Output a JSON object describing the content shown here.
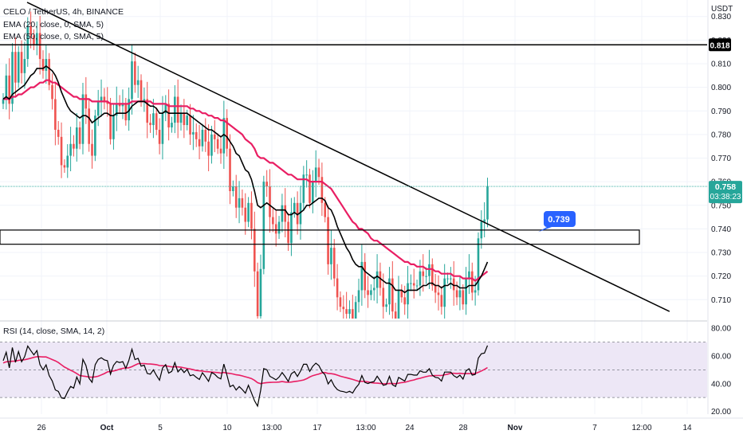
{
  "header": {
    "symbol_line": "CELO / TetherUS, 4h, BINANCE",
    "ema20_label": "EMA (20, close, 0, SMA, 5)",
    "ema50_label": "EMA (50, close, 0, SMA, 5)",
    "rsi_label": "RSI (14, close, SMA, 14, 2)"
  },
  "price_axis": {
    "currency": "USDT",
    "ticks": [
      "0.830",
      "0.820",
      "0.810",
      "0.800",
      "0.790",
      "0.780",
      "0.770",
      "0.760",
      "0.750",
      "0.740",
      "0.730",
      "0.720",
      "0.710"
    ],
    "ticks_values": [
      0.83,
      0.82,
      0.81,
      0.8,
      0.79,
      0.78,
      0.77,
      0.76,
      0.75,
      0.74,
      0.73,
      0.72,
      0.71
    ],
    "current_price": "0.758",
    "countdown": "03:38:23",
    "resistance_label": "0.818"
  },
  "rsi_axis": {
    "ticks": [
      "80.00",
      "60.00",
      "40.00",
      "20.00"
    ],
    "ticks_values": [
      80,
      60,
      40,
      20
    ]
  },
  "time_axis": {
    "labels": [
      "26",
      "Oct",
      "5",
      "10",
      "13:00",
      "17",
      "13:00",
      "24",
      "28",
      "Nov",
      "7",
      "12:00",
      "14"
    ]
  },
  "annotation": {
    "callout": "0.739"
  },
  "colors": {
    "up": "#26a69a",
    "down": "#ef5350",
    "ema20": "#000000",
    "ema50": "#e91e63",
    "rsi": "#000000",
    "rsi_ma": "#e91e63",
    "rsi_band": "#ede7f6",
    "badge": "#2962ff"
  },
  "chart_data": {
    "type": "candlestick",
    "interval": "4h",
    "price_range": [
      0.702,
      0.837
    ],
    "rsi_range": [
      18,
      83
    ],
    "rsi_levels": [
      70,
      50,
      30
    ],
    "horizontal_levels": [
      0.818
    ],
    "zone": [
      0.7335,
      0.7395
    ],
    "trendline": {
      "from": [
        0,
        0.836
      ],
      "to": [
        169,
        0.705
      ]
    },
    "callout_price": 0.739,
    "last_price": 0.758,
    "closes": [
      0.795,
      0.805,
      0.793,
      0.815,
      0.802,
      0.815,
      0.806,
      0.812,
      0.826,
      0.822,
      0.818,
      0.823,
      0.812,
      0.807,
      0.812,
      0.801,
      0.795,
      0.782,
      0.779,
      0.767,
      0.766,
      0.771,
      0.776,
      0.774,
      0.783,
      0.776,
      0.797,
      0.791,
      0.776,
      0.771,
      0.788,
      0.794,
      0.796,
      0.794,
      0.793,
      0.778,
      0.788,
      0.793,
      0.792,
      0.793,
      0.786,
      0.795,
      0.811,
      0.801,
      0.803,
      0.794,
      0.795,
      0.785,
      0.784,
      0.789,
      0.782,
      0.776,
      0.789,
      0.793,
      0.783,
      0.785,
      0.796,
      0.785,
      0.789,
      0.784,
      0.788,
      0.78,
      0.781,
      0.778,
      0.775,
      0.782,
      0.777,
      0.771,
      0.78,
      0.778,
      0.774,
      0.772,
      0.787,
      0.774,
      0.756,
      0.758,
      0.749,
      0.753,
      0.749,
      0.743,
      0.751,
      0.74,
      0.722,
      0.703,
      0.723,
      0.76,
      0.758,
      0.745,
      0.742,
      0.738,
      0.743,
      0.75,
      0.743,
      0.734,
      0.747,
      0.751,
      0.742,
      0.751,
      0.763,
      0.763,
      0.751,
      0.76,
      0.766,
      0.762,
      0.751,
      0.745,
      0.725,
      0.732,
      0.719,
      0.711,
      0.707,
      0.706,
      0.704,
      0.706,
      0.702,
      0.709,
      0.714,
      0.726,
      0.714,
      0.712,
      0.714,
      0.715,
      0.722,
      0.715,
      0.707,
      0.708,
      0.719,
      0.705,
      0.702,
      0.714,
      0.711,
      0.708,
      0.717,
      0.717,
      0.716,
      0.716,
      0.722,
      0.72,
      0.72,
      0.725,
      0.716,
      0.713,
      0.712,
      0.707,
      0.719,
      0.719,
      0.719,
      0.714,
      0.711,
      0.714,
      0.708,
      0.719,
      0.722,
      0.713,
      0.714,
      0.736,
      0.743,
      0.744,
      0.758
    ],
    "ema20": [
      0.795,
      0.796,
      0.795,
      0.797,
      0.798,
      0.799,
      0.8,
      0.801,
      0.803,
      0.805,
      0.806,
      0.808,
      0.808,
      0.808,
      0.809,
      0.808,
      0.807,
      0.805,
      0.802,
      0.798,
      0.795,
      0.792,
      0.79,
      0.789,
      0.788,
      0.787,
      0.788,
      0.788,
      0.787,
      0.785,
      0.786,
      0.787,
      0.788,
      0.789,
      0.789,
      0.788,
      0.788,
      0.789,
      0.789,
      0.789,
      0.789,
      0.79,
      0.792,
      0.793,
      0.794,
      0.794,
      0.794,
      0.793,
      0.792,
      0.792,
      0.791,
      0.789,
      0.789,
      0.79,
      0.789,
      0.789,
      0.789,
      0.789,
      0.789,
      0.789,
      0.789,
      0.788,
      0.787,
      0.786,
      0.785,
      0.784,
      0.783,
      0.782,
      0.782,
      0.781,
      0.78,
      0.779,
      0.78,
      0.779,
      0.777,
      0.775,
      0.772,
      0.771,
      0.768,
      0.765,
      0.764,
      0.761,
      0.756,
      0.75,
      0.749,
      0.75,
      0.751,
      0.75,
      0.749,
      0.748,
      0.748,
      0.748,
      0.748,
      0.746,
      0.746,
      0.747,
      0.746,
      0.747,
      0.748,
      0.75,
      0.75,
      0.751,
      0.752,
      0.753,
      0.753,
      0.752,
      0.749,
      0.748,
      0.745,
      0.741,
      0.738,
      0.735,
      0.732,
      0.73,
      0.727,
      0.725,
      0.724,
      0.724,
      0.722,
      0.721,
      0.72,
      0.719,
      0.72,
      0.719,
      0.718,
      0.717,
      0.717,
      0.716,
      0.714,
      0.714,
      0.714,
      0.713,
      0.714,
      0.714,
      0.714,
      0.714,
      0.715,
      0.716,
      0.716,
      0.717,
      0.717,
      0.716,
      0.716,
      0.715,
      0.716,
      0.716,
      0.717,
      0.716,
      0.716,
      0.715,
      0.715,
      0.715,
      0.716,
      0.716,
      0.716,
      0.718,
      0.72,
      0.723,
      0.726
    ],
    "ema50": [
      0.795,
      0.795,
      0.795,
      0.796,
      0.796,
      0.797,
      0.797,
      0.798,
      0.799,
      0.8,
      0.8,
      0.801,
      0.802,
      0.802,
      0.803,
      0.803,
      0.802,
      0.802,
      0.801,
      0.8,
      0.799,
      0.798,
      0.797,
      0.796,
      0.796,
      0.795,
      0.795,
      0.795,
      0.795,
      0.794,
      0.794,
      0.794,
      0.794,
      0.794,
      0.794,
      0.793,
      0.793,
      0.793,
      0.793,
      0.793,
      0.793,
      0.793,
      0.794,
      0.794,
      0.794,
      0.794,
      0.794,
      0.794,
      0.794,
      0.793,
      0.793,
      0.793,
      0.793,
      0.793,
      0.792,
      0.792,
      0.792,
      0.792,
      0.792,
      0.792,
      0.792,
      0.791,
      0.791,
      0.79,
      0.79,
      0.789,
      0.789,
      0.788,
      0.788,
      0.787,
      0.787,
      0.786,
      0.786,
      0.785,
      0.784,
      0.783,
      0.782,
      0.781,
      0.78,
      0.778,
      0.777,
      0.776,
      0.774,
      0.771,
      0.77,
      0.77,
      0.769,
      0.768,
      0.768,
      0.767,
      0.766,
      0.765,
      0.764,
      0.763,
      0.763,
      0.762,
      0.761,
      0.761,
      0.761,
      0.761,
      0.76,
      0.76,
      0.76,
      0.76,
      0.76,
      0.759,
      0.758,
      0.757,
      0.755,
      0.753,
      0.751,
      0.749,
      0.747,
      0.745,
      0.743,
      0.742,
      0.74,
      0.74,
      0.739,
      0.738,
      0.736,
      0.735,
      0.735,
      0.734,
      0.733,
      0.732,
      0.731,
      0.73,
      0.729,
      0.728,
      0.727,
      0.726,
      0.726,
      0.725,
      0.725,
      0.724,
      0.724,
      0.724,
      0.723,
      0.723,
      0.723,
      0.722,
      0.722,
      0.721,
      0.721,
      0.721,
      0.721,
      0.72,
      0.72,
      0.72,
      0.719,
      0.719,
      0.719,
      0.719,
      0.718,
      0.719,
      0.72,
      0.721,
      0.722
    ],
    "rsi": [
      56.6,
      62.7,
      51.4,
      66.1,
      55.4,
      63.2,
      55.8,
      59.5,
      67.2,
      63.9,
      60.8,
      63.9,
      53.8,
      49.9,
      53.6,
      45.8,
      42.0,
      35.5,
      34.4,
      29.7,
      29.3,
      34.0,
      38.0,
      36.8,
      44.8,
      39.9,
      57.6,
      53.2,
      43.8,
      41.0,
      53.7,
      57.5,
      58.7,
      57.2,
      56.6,
      46.9,
      53.2,
      56.0,
      55.3,
      55.9,
      51.1,
      56.7,
      64.9,
      57.4,
      58.3,
      52.7,
      53.4,
      47.4,
      46.9,
      50.0,
      45.9,
      42.5,
      51.3,
      53.7,
      47.6,
      48.9,
      55.2,
      48.5,
      50.9,
      48.0,
      50.4,
      45.7,
      46.4,
      44.6,
      43.0,
      47.9,
      44.9,
      41.7,
      48.0,
      46.8,
      44.5,
      43.4,
      54.2,
      46.1,
      37.8,
      39.0,
      35.4,
      37.9,
      35.8,
      33.1,
      38.8,
      33.4,
      27.6,
      23.8,
      35.3,
      50.9,
      50.1,
      45.3,
      44.1,
      42.8,
      44.8,
      48.0,
      45.1,
      41.6,
      47.1,
      48.8,
      45.2,
      49.1,
      54.0,
      54.0,
      48.9,
      52.5,
      54.8,
      53.1,
      48.7,
      46.4,
      39.8,
      42.8,
      38.3,
      35.8,
      34.6,
      34.3,
      33.6,
      34.5,
      33.2,
      36.9,
      39.5,
      45.9,
      40.9,
      40.1,
      41.0,
      41.5,
      45.4,
      42.2,
      38.8,
      39.4,
      45.3,
      39.2,
      38.0,
      44.5,
      43.2,
      41.9,
      46.7,
      46.7,
      46.2,
      46.2,
      49.3,
      48.3,
      48.3,
      50.8,
      46.1,
      44.6,
      44.2,
      41.9,
      48.4,
      48.4,
      48.4,
      45.8,
      44.4,
      46.1,
      43.3,
      49.3,
      50.8,
      46.2,
      46.7,
      58.5,
      61.6,
      62.1,
      67.5
    ],
    "rsi_ma": [
      55.0,
      55.8,
      55.9,
      56.2,
      56.3,
      56.8,
      57.1,
      57.3,
      57.8,
      58.4,
      59.0,
      59.5,
      59.5,
      59.3,
      59.3,
      58.4,
      57.4,
      56.5,
      55.3,
      53.6,
      52.0,
      50.9,
      49.7,
      48.6,
      47.3,
      45.9,
      45.5,
      45.2,
      44.8,
      44.7,
      44.9,
      45.4,
      46.3,
      47.3,
      48.5,
      48.9,
      49.2,
      49.7,
      50.5,
      51.0,
      51.3,
      51.5,
      52.3,
      53.4,
      54.4,
      54.5,
      54.5,
      54.3,
      54.2,
      54.0,
      53.7,
      53.1,
      53.0,
      52.9,
      52.5,
      52.1,
      52.2,
      52.1,
      51.9,
      51.4,
      51.0,
      50.6,
      50.1,
      49.5,
      49.3,
      49.1,
      48.7,
      48.6,
      48.4,
      48.2,
      48.0,
      47.7,
      48.1,
      47.7,
      47.4,
      47.0,
      46.4,
      46.1,
      45.6,
      45.0,
      44.4,
      43.7,
      42.4,
      40.7,
      40.0,
      40.5,
      40.8,
      40.9,
      41.0,
      41.0,
      41.2,
      41.5,
      41.2,
      41.0,
      41.2,
      41.5,
      41.8,
      42.2,
      42.7,
      43.6,
      44.8,
      45.8,
      46.4,
      47.0,
      47.8,
      48.0,
      47.4,
      47.2,
      46.9,
      46.2,
      45.4,
      44.8,
      44.3,
      43.7,
      43.1,
      42.4,
      41.7,
      41.7,
      41.6,
      41.3,
      40.8,
      40.5,
      40.4,
      40.2,
      40.0,
      39.9,
      40.2,
      40.1,
      40.0,
      40.4,
      40.8,
      41.0,
      41.6,
      42.2,
      42.7,
      43.4,
      43.9,
      44.5,
      45.1,
      45.6,
      45.7,
      45.9,
      45.9,
      45.9,
      46.4,
      46.9,
      47.5,
      47.5,
      47.3,
      47.5,
      47.2,
      47.2,
      47.3,
      47.3,
      47.3,
      48.2,
      49.2,
      50.3,
      51.6
    ]
  }
}
